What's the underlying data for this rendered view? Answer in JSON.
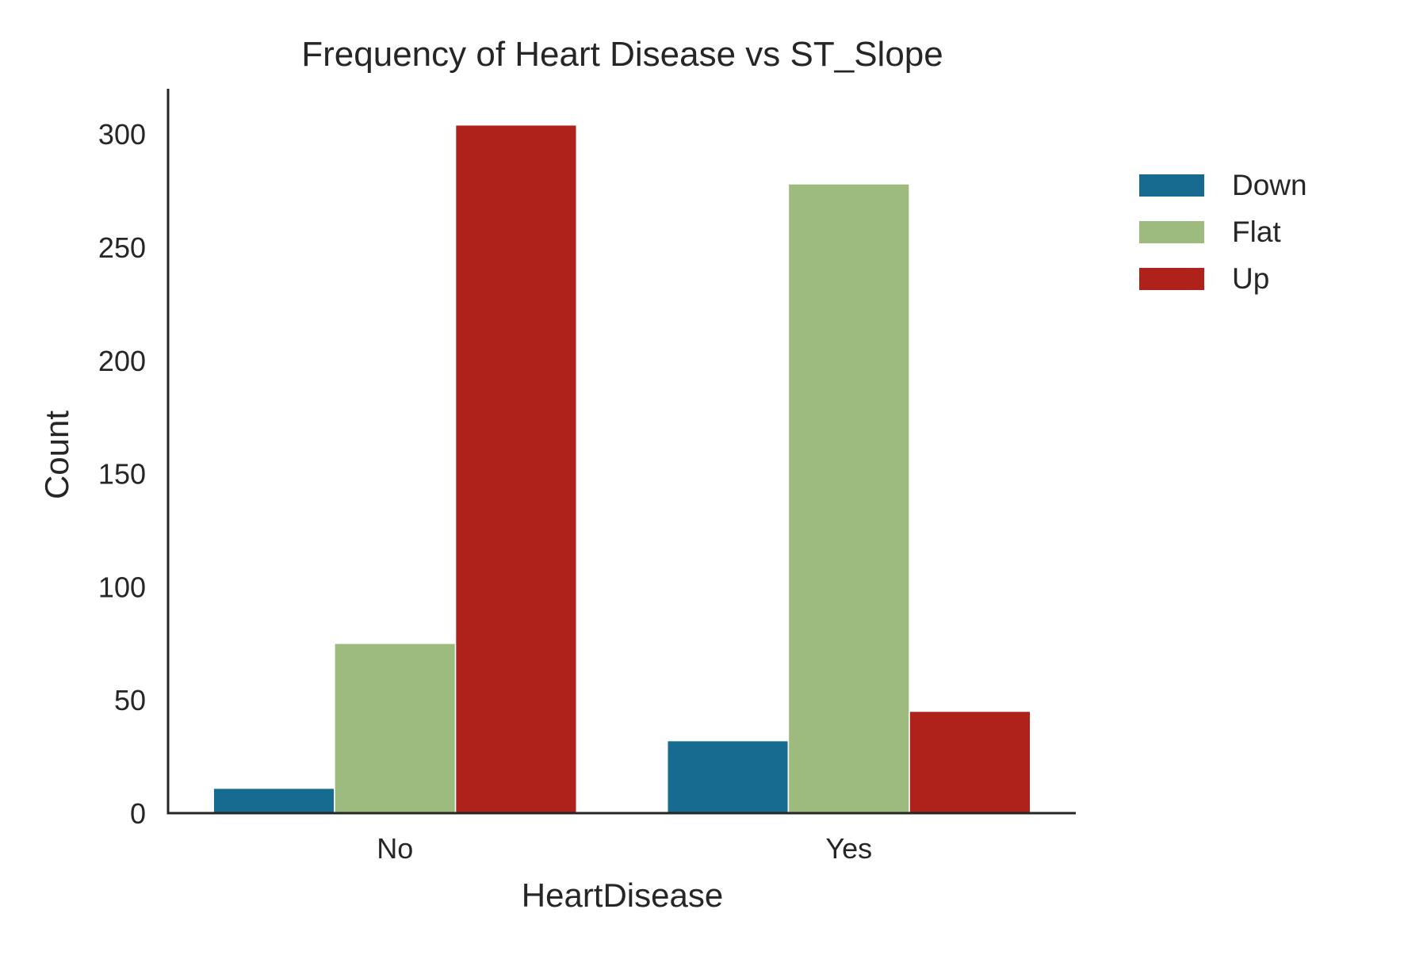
{
  "chart_data": {
    "type": "bar",
    "title": "Frequency of Heart Disease vs ST_Slope",
    "xlabel": "HeartDisease",
    "ylabel": "Count",
    "categories": [
      "No",
      "Yes"
    ],
    "series": [
      {
        "name": "Down",
        "color": "#176b91",
        "values": [
          11,
          32
        ]
      },
      {
        "name": "Flat",
        "color": "#9ebb7f",
        "values": [
          75,
          278
        ]
      },
      {
        "name": "Up",
        "color": "#af211b",
        "values": [
          304,
          45
        ]
      }
    ],
    "ylim": [
      0,
      320
    ],
    "yticks": [
      0,
      50,
      100,
      150,
      200,
      250,
      300
    ],
    "grid": false,
    "legend_position": "right"
  }
}
